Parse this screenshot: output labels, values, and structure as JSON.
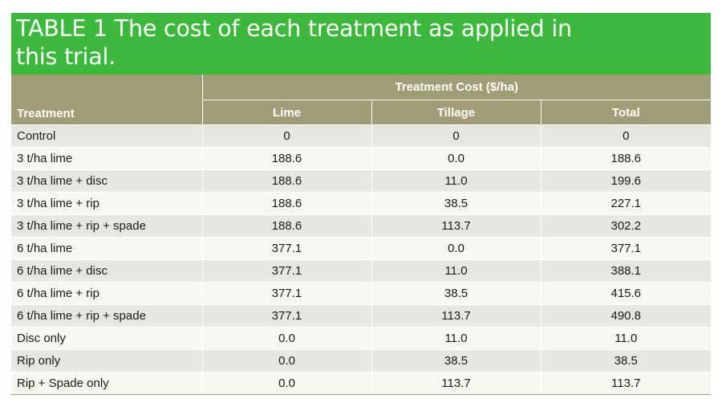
{
  "table": {
    "title_line1": "TABLE 1  The cost of each treatment as applied in",
    "title_line2": "this trial.",
    "group_header": "Treatment Cost ($/ha)",
    "columns": {
      "treatment": "Treatment",
      "lime": "Lime",
      "tillage": "Tillage",
      "total": "Total"
    },
    "rows": [
      {
        "treatment": "Control",
        "lime": "0",
        "tillage": "0",
        "total": "0"
      },
      {
        "treatment": "3 t/ha lime",
        "lime": "188.6",
        "tillage": "0.0",
        "total": "188.6"
      },
      {
        "treatment": "3 t/ha lime + disc",
        "lime": "188.6",
        "tillage": "11.0",
        "total": "199.6"
      },
      {
        "treatment": "3 t/ha lime + rip",
        "lime": "188.6",
        "tillage": "38.5",
        "total": "227.1"
      },
      {
        "treatment": "3 t/ha lime + rip + spade",
        "lime": "188.6",
        "tillage": "113.7",
        "total": "302.2"
      },
      {
        "treatment": "6 t/ha lime",
        "lime": "377.1",
        "tillage": "0.0",
        "total": "377.1"
      },
      {
        "treatment": "6 t/ha lime + disc",
        "lime": "377.1",
        "tillage": "11.0",
        "total": "388.1"
      },
      {
        "treatment": "6 t/ha lime + rip",
        "lime": "377.1",
        "tillage": "38.5",
        "total": "415.6"
      },
      {
        "treatment": "6 t/ha lime + rip + spade",
        "lime": "377.1",
        "tillage": "113.7",
        "total": "490.8"
      },
      {
        "treatment": "Disc only",
        "lime": "0.0",
        "tillage": "11.0",
        "total": "11.0"
      },
      {
        "treatment": "Rip only",
        "lime": "0.0",
        "tillage": "38.5",
        "total": "38.5"
      },
      {
        "treatment": "Rip + Spade only",
        "lime": "0.0",
        "tillage": "113.7",
        "total": "113.7"
      }
    ]
  },
  "colors": {
    "banner": "#3cb93c",
    "header": "#a19d76",
    "row_odd": "#e8e6e1",
    "row_even": "#f7f6f3"
  }
}
